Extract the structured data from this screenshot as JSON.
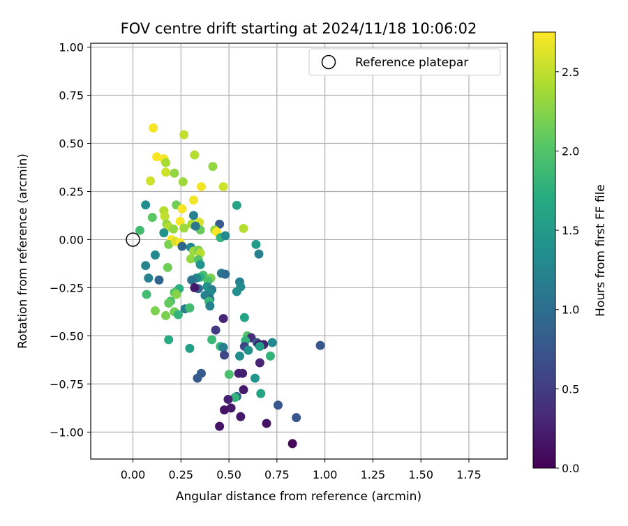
{
  "chart_data": {
    "type": "scatter",
    "title": "FOV centre drift starting at 2024/11/18 10:06:02",
    "xlabel": "Angular distance from reference (arcmin)",
    "ylabel": "Rotation from reference (arcmin)",
    "xlim": [
      -0.22,
      1.95
    ],
    "ylim": [
      -1.14,
      1.02
    ],
    "xticks": [
      "0.00",
      "0.25",
      "0.50",
      "0.75",
      "1.00",
      "1.25",
      "1.50",
      "1.75"
    ],
    "yticks": [
      "−1.00",
      "−0.75",
      "−0.50",
      "−0.25",
      "0.00",
      "0.25",
      "0.50",
      "0.75",
      "1.00"
    ],
    "grid": true,
    "legend": {
      "position": "top-right",
      "label": "Reference platepar"
    },
    "reference_point": {
      "x": 0.0,
      "y": 0.0
    },
    "colorbar": {
      "label": "Hours from first FF file",
      "range": [
        0.0,
        2.75
      ],
      "ticks": [
        "0.0",
        "0.5",
        "1.0",
        "1.5",
        "2.0",
        "2.5"
      ],
      "colormap": "viridis"
    },
    "points": [
      {
        "x": 0.106,
        "y": 0.58,
        "c": 2.73
      },
      {
        "x": 0.266,
        "y": 0.545,
        "c": 2.5
      },
      {
        "x": 0.124,
        "y": 0.43,
        "c": 2.73
      },
      {
        "x": 0.161,
        "y": 0.42,
        "c": 2.73
      },
      {
        "x": 0.321,
        "y": 0.44,
        "c": 2.45
      },
      {
        "x": 0.171,
        "y": 0.4,
        "c": 2.4
      },
      {
        "x": 0.171,
        "y": 0.35,
        "c": 2.55
      },
      {
        "x": 0.216,
        "y": 0.345,
        "c": 2.3
      },
      {
        "x": 0.091,
        "y": 0.305,
        "c": 2.55
      },
      {
        "x": 0.261,
        "y": 0.3,
        "c": 2.35
      },
      {
        "x": 0.416,
        "y": 0.38,
        "c": 2.3
      },
      {
        "x": 0.356,
        "y": 0.275,
        "c": 2.7
      },
      {
        "x": 0.471,
        "y": 0.275,
        "c": 2.55
      },
      {
        "x": 0.066,
        "y": 0.18,
        "c": 1.35
      },
      {
        "x": 0.226,
        "y": 0.18,
        "c": 2.15
      },
      {
        "x": 0.316,
        "y": 0.205,
        "c": 2.7
      },
      {
        "x": 0.541,
        "y": 0.178,
        "c": 1.6
      },
      {
        "x": 0.161,
        "y": 0.15,
        "c": 2.45
      },
      {
        "x": 0.256,
        "y": 0.16,
        "c": 2.73
      },
      {
        "x": 0.166,
        "y": 0.12,
        "c": 2.5
      },
      {
        "x": 0.101,
        "y": 0.115,
        "c": 2.05
      },
      {
        "x": 0.316,
        "y": 0.125,
        "c": 1.2
      },
      {
        "x": 0.451,
        "y": 0.08,
        "c": 0.8
      },
      {
        "x": 0.246,
        "y": 0.095,
        "c": 2.73
      },
      {
        "x": 0.176,
        "y": 0.08,
        "c": 2.3
      },
      {
        "x": 0.186,
        "y": 0.065,
        "c": 2.45
      },
      {
        "x": 0.211,
        "y": 0.055,
        "c": 2.3
      },
      {
        "x": 0.266,
        "y": 0.06,
        "c": 2.35
      },
      {
        "x": 0.306,
        "y": 0.08,
        "c": 2.4
      },
      {
        "x": 0.346,
        "y": 0.09,
        "c": 2.6
      },
      {
        "x": 0.426,
        "y": 0.05,
        "c": 2.3
      },
      {
        "x": 0.436,
        "y": 0.04,
        "c": 2.73
      },
      {
        "x": 0.576,
        "y": 0.058,
        "c": 2.45
      },
      {
        "x": 0.036,
        "y": 0.048,
        "c": 1.9
      },
      {
        "x": 0.161,
        "y": 0.035,
        "c": 1.4
      },
      {
        "x": 0.351,
        "y": 0.05,
        "c": 2.1
      },
      {
        "x": 0.326,
        "y": 0.07,
        "c": 1.1
      },
      {
        "x": 0.456,
        "y": 0.01,
        "c": 1.8
      },
      {
        "x": 0.481,
        "y": 0.02,
        "c": 1.3
      },
      {
        "x": 0.201,
        "y": 0.0,
        "c": 2.73
      },
      {
        "x": 0.186,
        "y": -0.025,
        "c": 2.2
      },
      {
        "x": 0.221,
        "y": -0.01,
        "c": 2.6
      },
      {
        "x": 0.246,
        "y": -0.015,
        "c": 2.73
      },
      {
        "x": 0.256,
        "y": -0.035,
        "c": 0.9
      },
      {
        "x": 0.301,
        "y": -0.04,
        "c": 1.3
      },
      {
        "x": 0.316,
        "y": -0.06,
        "c": 2.35
      },
      {
        "x": 0.341,
        "y": -0.055,
        "c": 2.2
      },
      {
        "x": 0.351,
        "y": -0.07,
        "c": 2.45
      },
      {
        "x": 0.641,
        "y": -0.025,
        "c": 1.5
      },
      {
        "x": 0.656,
        "y": -0.075,
        "c": 1.2
      },
      {
        "x": 0.116,
        "y": -0.08,
        "c": 1.3
      },
      {
        "x": 0.301,
        "y": -0.1,
        "c": 2.3
      },
      {
        "x": 0.341,
        "y": -0.105,
        "c": 2.0
      },
      {
        "x": 0.351,
        "y": -0.13,
        "c": 1.4
      },
      {
        "x": 0.066,
        "y": -0.135,
        "c": 1.25
      },
      {
        "x": 0.181,
        "y": -0.145,
        "c": 2.15
      },
      {
        "x": 0.461,
        "y": -0.175,
        "c": 1.1
      },
      {
        "x": 0.481,
        "y": -0.18,
        "c": 1.0
      },
      {
        "x": 0.366,
        "y": -0.185,
        "c": 1.95
      },
      {
        "x": 0.351,
        "y": -0.195,
        "c": 1.75
      },
      {
        "x": 0.331,
        "y": -0.2,
        "c": 1.3
      },
      {
        "x": 0.406,
        "y": -0.2,
        "c": 2.2
      },
      {
        "x": 0.391,
        "y": -0.215,
        "c": 1.95
      },
      {
        "x": 0.081,
        "y": -0.2,
        "c": 1.2
      },
      {
        "x": 0.136,
        "y": -0.21,
        "c": 0.9
      },
      {
        "x": 0.306,
        "y": -0.21,
        "c": 1.05
      },
      {
        "x": 0.556,
        "y": -0.22,
        "c": 1.2
      },
      {
        "x": 0.561,
        "y": -0.245,
        "c": 1.3
      },
      {
        "x": 0.386,
        "y": -0.245,
        "c": 1.4
      },
      {
        "x": 0.411,
        "y": -0.26,
        "c": 1.15
      },
      {
        "x": 0.401,
        "y": -0.275,
        "c": 1.3
      },
      {
        "x": 0.341,
        "y": -0.255,
        "c": 0.95
      },
      {
        "x": 0.321,
        "y": -0.25,
        "c": 0.2
      },
      {
        "x": 0.241,
        "y": -0.255,
        "c": 1.75
      },
      {
        "x": 0.216,
        "y": -0.275,
        "c": 2.0
      },
      {
        "x": 0.226,
        "y": -0.285,
        "c": 2.25
      },
      {
        "x": 0.071,
        "y": -0.285,
        "c": 1.9
      },
      {
        "x": 0.541,
        "y": -0.27,
        "c": 1.35
      },
      {
        "x": 0.376,
        "y": -0.29,
        "c": 1.2
      },
      {
        "x": 0.401,
        "y": -0.31,
        "c": 1.0
      },
      {
        "x": 0.396,
        "y": -0.32,
        "c": 1.85
      },
      {
        "x": 0.196,
        "y": -0.32,
        "c": 1.95
      },
      {
        "x": 0.186,
        "y": -0.33,
        "c": 2.1
      },
      {
        "x": 0.401,
        "y": -0.345,
        "c": 1.2
      },
      {
        "x": 0.271,
        "y": -0.36,
        "c": 1.2
      },
      {
        "x": 0.296,
        "y": -0.355,
        "c": 1.9
      },
      {
        "x": 0.216,
        "y": -0.375,
        "c": 2.15
      },
      {
        "x": 0.236,
        "y": -0.39,
        "c": 1.8
      },
      {
        "x": 0.116,
        "y": -0.37,
        "c": 2.2
      },
      {
        "x": 0.171,
        "y": -0.395,
        "c": 2.2
      },
      {
        "x": 0.581,
        "y": -0.405,
        "c": 1.6
      },
      {
        "x": 0.471,
        "y": -0.41,
        "c": 0.3
      },
      {
        "x": 0.431,
        "y": -0.47,
        "c": 0.5
      },
      {
        "x": 0.596,
        "y": -0.5,
        "c": 2.0
      },
      {
        "x": 0.616,
        "y": -0.51,
        "c": 0.35
      },
      {
        "x": 0.586,
        "y": -0.525,
        "c": 1.8
      },
      {
        "x": 0.411,
        "y": -0.52,
        "c": 1.85
      },
      {
        "x": 0.186,
        "y": -0.52,
        "c": 1.7
      },
      {
        "x": 0.646,
        "y": -0.535,
        "c": 0.8
      },
      {
        "x": 0.681,
        "y": -0.545,
        "c": 0.25
      },
      {
        "x": 0.656,
        "y": -0.545,
        "c": 0.2
      },
      {
        "x": 0.726,
        "y": -0.535,
        "c": 1.3
      },
      {
        "x": 0.581,
        "y": -0.555,
        "c": 0.6
      },
      {
        "x": 0.661,
        "y": -0.555,
        "c": 1.55
      },
      {
        "x": 0.456,
        "y": -0.555,
        "c": 1.8
      },
      {
        "x": 0.471,
        "y": -0.56,
        "c": 1.2
      },
      {
        "x": 0.296,
        "y": -0.565,
        "c": 1.55
      },
      {
        "x": 0.601,
        "y": -0.575,
        "c": 1.4
      },
      {
        "x": 0.476,
        "y": -0.6,
        "c": 0.6
      },
      {
        "x": 0.556,
        "y": -0.605,
        "c": 1.35
      },
      {
        "x": 0.716,
        "y": -0.605,
        "c": 1.8
      },
      {
        "x": 0.661,
        "y": -0.64,
        "c": 0.3
      },
      {
        "x": 0.976,
        "y": -0.55,
        "c": 0.75
      },
      {
        "x": 0.356,
        "y": -0.695,
        "c": 0.8
      },
      {
        "x": 0.501,
        "y": -0.7,
        "c": 1.95
      },
      {
        "x": 0.551,
        "y": -0.695,
        "c": 0.25
      },
      {
        "x": 0.571,
        "y": -0.695,
        "c": 0.25
      },
      {
        "x": 0.336,
        "y": -0.72,
        "c": 0.8
      },
      {
        "x": 0.636,
        "y": -0.72,
        "c": 1.45
      },
      {
        "x": 0.576,
        "y": -0.78,
        "c": 0.2
      },
      {
        "x": 0.666,
        "y": -0.8,
        "c": 1.6
      },
      {
        "x": 0.756,
        "y": -0.86,
        "c": 0.75
      },
      {
        "x": 0.541,
        "y": -0.815,
        "c": 0.9
      },
      {
        "x": 0.531,
        "y": -0.82,
        "c": 1.8
      },
      {
        "x": 0.496,
        "y": -0.83,
        "c": 0.25
      },
      {
        "x": 0.511,
        "y": -0.875,
        "c": 0.2
      },
      {
        "x": 0.476,
        "y": -0.885,
        "c": 0.15
      },
      {
        "x": 0.561,
        "y": -0.92,
        "c": 0.2
      },
      {
        "x": 0.851,
        "y": -0.925,
        "c": 0.75
      },
      {
        "x": 0.696,
        "y": -0.955,
        "c": 0.15
      },
      {
        "x": 0.451,
        "y": -0.97,
        "c": 0.15
      },
      {
        "x": 0.831,
        "y": -1.06,
        "c": 0.05
      }
    ]
  }
}
